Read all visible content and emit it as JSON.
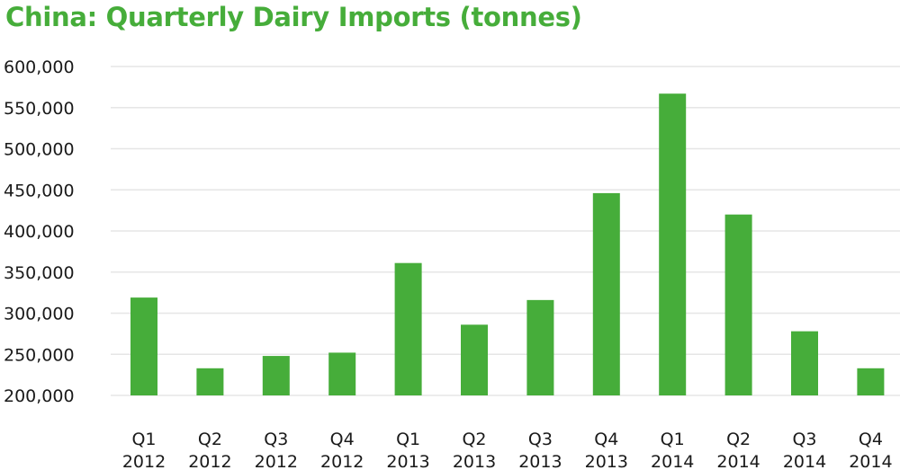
{
  "chart_data": {
    "type": "bar",
    "title": "China: Quarterly Dairy Imports (tonnes)",
    "xlabel": "",
    "ylabel": "",
    "ylim": [
      200000,
      600000
    ],
    "yticks": [
      200000,
      250000,
      300000,
      350000,
      400000,
      450000,
      500000,
      550000,
      600000
    ],
    "ytick_labels": [
      "200,000",
      "250,000",
      "300,000",
      "350,000",
      "400,000",
      "450,000",
      "500,000",
      "550,000",
      "600,000"
    ],
    "grid": true,
    "legend": "none",
    "bar_color": "#46ad3a",
    "categories": [
      [
        "Q1",
        "2012"
      ],
      [
        "Q2",
        "2012"
      ],
      [
        "Q3",
        "2012"
      ],
      [
        "Q4",
        "2012"
      ],
      [
        "Q1",
        "2013"
      ],
      [
        "Q2",
        "2013"
      ],
      [
        "Q3",
        "2013"
      ],
      [
        "Q4",
        "2013"
      ],
      [
        "Q1",
        "2014"
      ],
      [
        "Q2",
        "2014"
      ],
      [
        "Q3",
        "2014"
      ],
      [
        "Q4",
        "2014"
      ]
    ],
    "values": [
      319000,
      233000,
      248000,
      252000,
      361000,
      286000,
      316000,
      446000,
      567000,
      420000,
      278000,
      233000
    ]
  },
  "colors": {
    "title": "#46ad3a",
    "bars": "#46ad3a",
    "grid": "#e6e6e6",
    "text": "#1a1a1a"
  }
}
